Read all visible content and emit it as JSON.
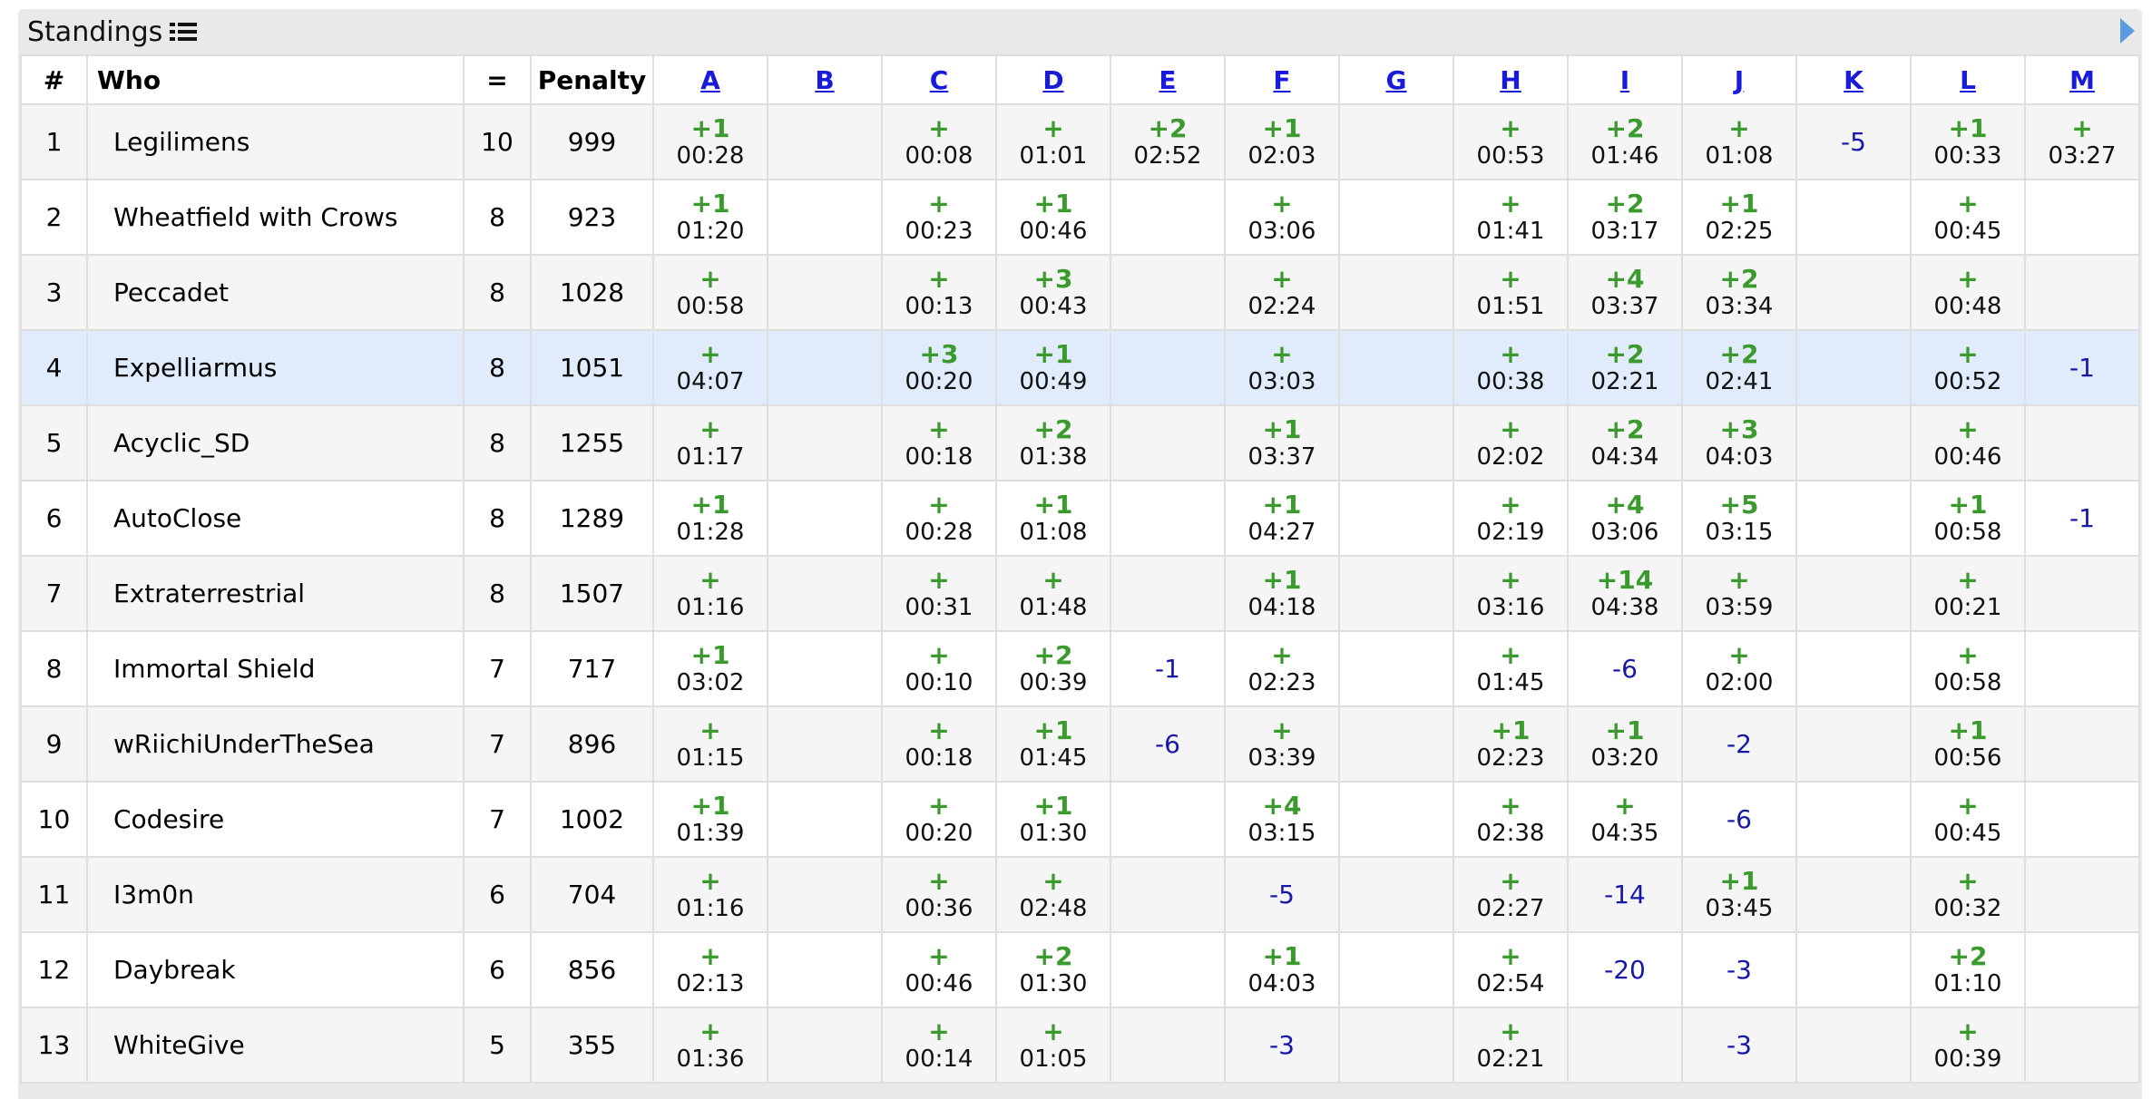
{
  "panel": {
    "title": "Standings",
    "list_icon": "list-icon",
    "collapse_icon": "triangle-right-icon"
  },
  "columns": {
    "rank": "#",
    "who": "Who",
    "solved": "=",
    "penalty": "Penalty"
  },
  "problems": [
    "A",
    "B",
    "C",
    "D",
    "E",
    "F",
    "G",
    "H",
    "I",
    "J",
    "K",
    "L",
    "M"
  ],
  "colors": {
    "accepted": "#3a9a2e",
    "rejected": "#1818a8",
    "link": "#1a1adb",
    "highlight_row": "#e0ecfb"
  },
  "rows": [
    {
      "rank": "1",
      "who": "Legilimens",
      "solved": "10",
      "penalty": "999",
      "highlight": false,
      "cells": [
        {
          "t": "+1",
          "m": "00:28"
        },
        null,
        {
          "t": "+",
          "m": "00:08"
        },
        {
          "t": "+",
          "m": "01:01"
        },
        {
          "t": "+2",
          "m": "02:52"
        },
        {
          "t": "+1",
          "m": "02:03"
        },
        null,
        {
          "t": "+",
          "m": "00:53"
        },
        {
          "t": "+2",
          "m": "01:46"
        },
        {
          "t": "+",
          "m": "01:08"
        },
        {
          "f": "-5"
        },
        {
          "t": "+1",
          "m": "00:33"
        },
        {
          "t": "+",
          "m": "03:27"
        }
      ]
    },
    {
      "rank": "2",
      "who": "Wheatfield with Crows",
      "solved": "8",
      "penalty": "923",
      "highlight": false,
      "cells": [
        {
          "t": "+1",
          "m": "01:20"
        },
        null,
        {
          "t": "+",
          "m": "00:23"
        },
        {
          "t": "+1",
          "m": "00:46"
        },
        null,
        {
          "t": "+",
          "m": "03:06"
        },
        null,
        {
          "t": "+",
          "m": "01:41"
        },
        {
          "t": "+2",
          "m": "03:17"
        },
        {
          "t": "+1",
          "m": "02:25"
        },
        null,
        {
          "t": "+",
          "m": "00:45"
        },
        null
      ]
    },
    {
      "rank": "3",
      "who": "Peccadet",
      "solved": "8",
      "penalty": "1028",
      "highlight": false,
      "cells": [
        {
          "t": "+",
          "m": "00:58"
        },
        null,
        {
          "t": "+",
          "m": "00:13"
        },
        {
          "t": "+3",
          "m": "00:43"
        },
        null,
        {
          "t": "+",
          "m": "02:24"
        },
        null,
        {
          "t": "+",
          "m": "01:51"
        },
        {
          "t": "+4",
          "m": "03:37"
        },
        {
          "t": "+2",
          "m": "03:34"
        },
        null,
        {
          "t": "+",
          "m": "00:48"
        },
        null
      ]
    },
    {
      "rank": "4",
      "who": "Expelliarmus",
      "solved": "8",
      "penalty": "1051",
      "highlight": true,
      "cells": [
        {
          "t": "+",
          "m": "04:07"
        },
        null,
        {
          "t": "+3",
          "m": "00:20"
        },
        {
          "t": "+1",
          "m": "00:49"
        },
        null,
        {
          "t": "+",
          "m": "03:03"
        },
        null,
        {
          "t": "+",
          "m": "00:38"
        },
        {
          "t": "+2",
          "m": "02:21"
        },
        {
          "t": "+2",
          "m": "02:41"
        },
        null,
        {
          "t": "+",
          "m": "00:52"
        },
        {
          "f": "-1"
        }
      ]
    },
    {
      "rank": "5",
      "who": "Acyclic_SD",
      "solved": "8",
      "penalty": "1255",
      "highlight": false,
      "cells": [
        {
          "t": "+",
          "m": "01:17"
        },
        null,
        {
          "t": "+",
          "m": "00:18"
        },
        {
          "t": "+2",
          "m": "01:38"
        },
        null,
        {
          "t": "+1",
          "m": "03:37"
        },
        null,
        {
          "t": "+",
          "m": "02:02"
        },
        {
          "t": "+2",
          "m": "04:34"
        },
        {
          "t": "+3",
          "m": "04:03"
        },
        null,
        {
          "t": "+",
          "m": "00:46"
        },
        null
      ]
    },
    {
      "rank": "6",
      "who": "AutoClose",
      "solved": "8",
      "penalty": "1289",
      "highlight": false,
      "cells": [
        {
          "t": "+1",
          "m": "01:28"
        },
        null,
        {
          "t": "+",
          "m": "00:28"
        },
        {
          "t": "+1",
          "m": "01:08"
        },
        null,
        {
          "t": "+1",
          "m": "04:27"
        },
        null,
        {
          "t": "+",
          "m": "02:19"
        },
        {
          "t": "+4",
          "m": "03:06"
        },
        {
          "t": "+5",
          "m": "03:15"
        },
        null,
        {
          "t": "+1",
          "m": "00:58"
        },
        {
          "f": "-1"
        }
      ]
    },
    {
      "rank": "7",
      "who": "Extraterrestrial",
      "solved": "8",
      "penalty": "1507",
      "highlight": false,
      "cells": [
        {
          "t": "+",
          "m": "01:16"
        },
        null,
        {
          "t": "+",
          "m": "00:31"
        },
        {
          "t": "+",
          "m": "01:48"
        },
        null,
        {
          "t": "+1",
          "m": "04:18"
        },
        null,
        {
          "t": "+",
          "m": "03:16"
        },
        {
          "t": "+14",
          "m": "04:38"
        },
        {
          "t": "+",
          "m": "03:59"
        },
        null,
        {
          "t": "+",
          "m": "00:21"
        },
        null
      ]
    },
    {
      "rank": "8",
      "who": "Immortal Shield",
      "solved": "7",
      "penalty": "717",
      "highlight": false,
      "cells": [
        {
          "t": "+1",
          "m": "03:02"
        },
        null,
        {
          "t": "+",
          "m": "00:10"
        },
        {
          "t": "+2",
          "m": "00:39"
        },
        {
          "f": "-1"
        },
        {
          "t": "+",
          "m": "02:23"
        },
        null,
        {
          "t": "+",
          "m": "01:45"
        },
        {
          "f": "-6"
        },
        {
          "t": "+",
          "m": "02:00"
        },
        null,
        {
          "t": "+",
          "m": "00:58"
        },
        null
      ]
    },
    {
      "rank": "9",
      "who": "wRiichiUnderTheSea",
      "solved": "7",
      "penalty": "896",
      "highlight": false,
      "cells": [
        {
          "t": "+",
          "m": "01:15"
        },
        null,
        {
          "t": "+",
          "m": "00:18"
        },
        {
          "t": "+1",
          "m": "01:45"
        },
        {
          "f": "-6"
        },
        {
          "t": "+",
          "m": "03:39"
        },
        null,
        {
          "t": "+1",
          "m": "02:23"
        },
        {
          "t": "+1",
          "m": "03:20"
        },
        {
          "f": "-2"
        },
        null,
        {
          "t": "+1",
          "m": "00:56"
        },
        null
      ]
    },
    {
      "rank": "10",
      "who": "Codesire",
      "solved": "7",
      "penalty": "1002",
      "highlight": false,
      "cells": [
        {
          "t": "+1",
          "m": "01:39"
        },
        null,
        {
          "t": "+",
          "m": "00:20"
        },
        {
          "t": "+1",
          "m": "01:30"
        },
        null,
        {
          "t": "+4",
          "m": "03:15"
        },
        null,
        {
          "t": "+",
          "m": "02:38"
        },
        {
          "t": "+",
          "m": "04:35"
        },
        {
          "f": "-6"
        },
        null,
        {
          "t": "+",
          "m": "00:45"
        },
        null
      ]
    },
    {
      "rank": "11",
      "who": "I3m0n",
      "solved": "6",
      "penalty": "704",
      "highlight": false,
      "cells": [
        {
          "t": "+",
          "m": "01:16"
        },
        null,
        {
          "t": "+",
          "m": "00:36"
        },
        {
          "t": "+",
          "m": "02:48"
        },
        null,
        {
          "f": "-5"
        },
        null,
        {
          "t": "+",
          "m": "02:27"
        },
        {
          "f": "-14"
        },
        {
          "t": "+1",
          "m": "03:45"
        },
        null,
        {
          "t": "+",
          "m": "00:32"
        },
        null
      ]
    },
    {
      "rank": "12",
      "who": "Daybreak",
      "solved": "6",
      "penalty": "856",
      "highlight": false,
      "cells": [
        {
          "t": "+",
          "m": "02:13"
        },
        null,
        {
          "t": "+",
          "m": "00:46"
        },
        {
          "t": "+2",
          "m": "01:30"
        },
        null,
        {
          "t": "+1",
          "m": "04:03"
        },
        null,
        {
          "t": "+",
          "m": "02:54"
        },
        {
          "f": "-20"
        },
        {
          "f": "-3"
        },
        null,
        {
          "t": "+2",
          "m": "01:10"
        },
        null
      ]
    },
    {
      "rank": "13",
      "who": "WhiteGive",
      "solved": "5",
      "penalty": "355",
      "highlight": false,
      "cells": [
        {
          "t": "+",
          "m": "01:36"
        },
        null,
        {
          "t": "+",
          "m": "00:14"
        },
        {
          "t": "+",
          "m": "01:05"
        },
        null,
        {
          "f": "-3"
        },
        null,
        {
          "t": "+",
          "m": "02:21"
        },
        null,
        {
          "f": "-3"
        },
        null,
        {
          "t": "+",
          "m": "00:39"
        },
        null
      ]
    }
  ]
}
